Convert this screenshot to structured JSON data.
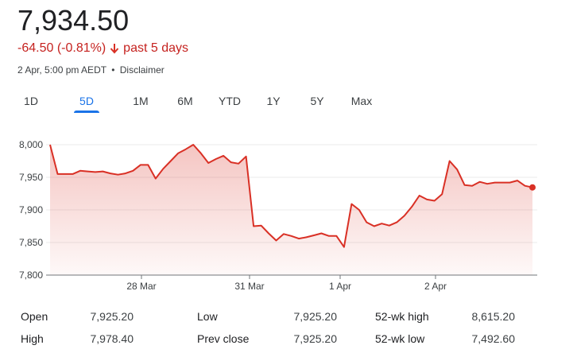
{
  "quote": {
    "price": "7,934.50",
    "change": "-64.50 (-0.81%)",
    "period": "past 5 days",
    "timestamp": "2 Apr, 5:00 pm AEDT",
    "separator": "•",
    "disclaimer": "Disclaimer",
    "down_color": "#d93025",
    "arrow_icon": "arrow-down-icon"
  },
  "tabs": [
    {
      "label": "1D",
      "active": false
    },
    {
      "label": "5D",
      "active": true
    },
    {
      "label": "1M",
      "active": false
    },
    {
      "label": "6M",
      "active": false
    },
    {
      "label": "YTD",
      "active": false
    },
    {
      "label": "1Y",
      "active": false
    },
    {
      "label": "5Y",
      "active": false
    },
    {
      "label": "Max",
      "active": false
    }
  ],
  "chart_data": {
    "type": "area",
    "ylim": [
      7800,
      8000
    ],
    "yticks": [
      "8,000",
      "7,950",
      "7,900",
      "7,850",
      "7,800"
    ],
    "xticks": [
      "28 Mar",
      "31 Mar",
      "1 Apr",
      "2 Apr"
    ],
    "line_color": "#d93025",
    "series": [
      {
        "values": [
          8000,
          7955,
          7955,
          7955,
          7960,
          7959,
          7958,
          7959,
          7956,
          7954,
          7956,
          7960,
          7969,
          7969,
          7948,
          7963,
          7975,
          7987,
          7993,
          8000,
          7987,
          7972,
          7978,
          7983,
          7973,
          7971,
          7982,
          7875,
          7876,
          7864,
          7853,
          7863,
          7860,
          7856,
          7858,
          7861,
          7864,
          7860,
          7860,
          7843,
          7909,
          7900,
          7881,
          7875,
          7879,
          7876,
          7881,
          7891,
          7905,
          7922,
          7916,
          7914,
          7924,
          7975,
          7962,
          7938,
          7937,
          7943,
          7940,
          7942,
          7942,
          7942,
          7945,
          7937,
          7934.5
        ]
      }
    ]
  },
  "stats": {
    "open_label": "Open",
    "open_value": "7,925.20",
    "high_label": "High",
    "high_value": "7,978.40",
    "low_label": "Low",
    "low_value": "7,925.20",
    "prev_close_label": "Prev close",
    "prev_close_value": "7,925.20",
    "wk52_high_label": "52-wk high",
    "wk52_high_value": "8,615.20",
    "wk52_low_label": "52-wk low",
    "wk52_low_value": "7,492.60"
  }
}
